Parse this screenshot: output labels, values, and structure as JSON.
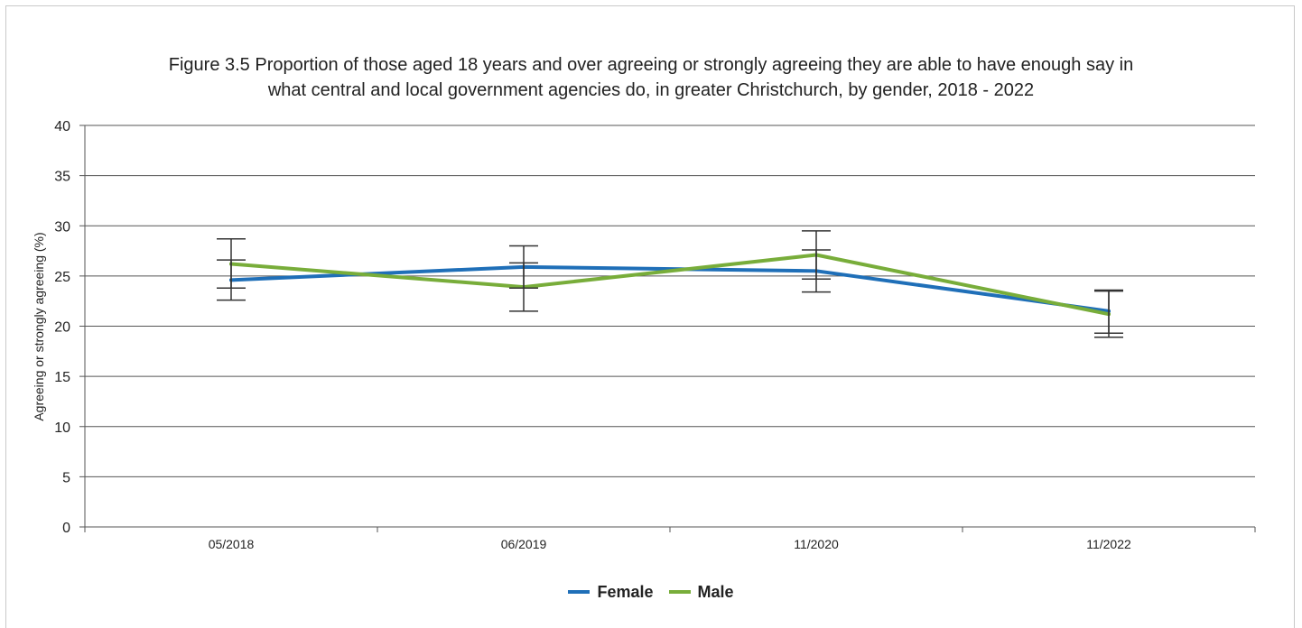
{
  "chart_data": {
    "type": "line",
    "title_line1": "Figure 3.5 Proportion of those aged 18 years and over agreeing or strongly agreeing they are able to have enough say in",
    "title_line2": "what central and local government agencies do, in greater Christchurch, by gender, 2018 - 2022",
    "xlabel": "",
    "ylabel": "Agreeing or strongly agreeing (%)",
    "categories": [
      "05/2018",
      "06/2019",
      "11/2020",
      "11/2022"
    ],
    "ylim": [
      0,
      40
    ],
    "yticks": [
      0,
      5,
      10,
      15,
      20,
      25,
      30,
      35,
      40
    ],
    "grid": true,
    "legend_position": "bottom",
    "series": [
      {
        "name": "Female",
        "color": "#1f6fb8",
        "values": [
          24.6,
          25.9,
          25.5,
          21.5
        ],
        "error_low": [
          22.6,
          23.8,
          23.4,
          19.3
        ],
        "error_high": [
          26.6,
          28.0,
          27.6,
          23.6
        ]
      },
      {
        "name": "Male",
        "color": "#78ad3a",
        "values": [
          26.2,
          23.9,
          27.1,
          21.2
        ],
        "error_low": [
          23.8,
          21.5,
          24.7,
          18.9
        ],
        "error_high": [
          28.7,
          26.3,
          29.5,
          23.5
        ]
      }
    ]
  }
}
